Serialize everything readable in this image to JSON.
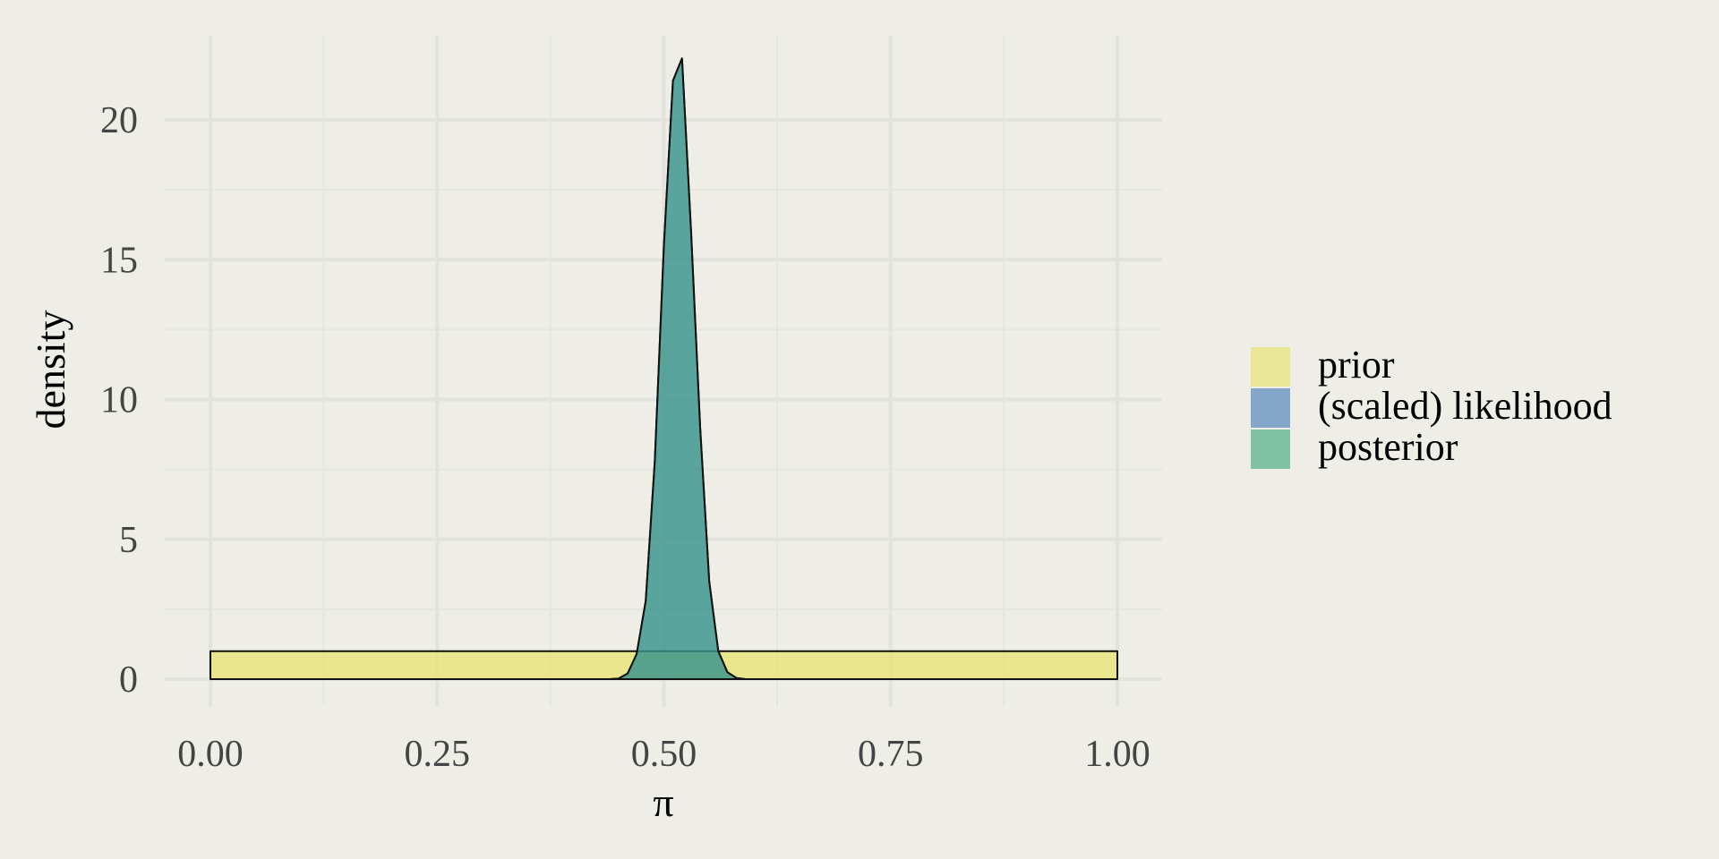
{
  "chart_data": {
    "type": "area",
    "title": "",
    "xlabel": "π",
    "ylabel": "density",
    "xlim": [
      0,
      1
    ],
    "ylim": [
      0,
      22.3
    ],
    "x_ticks": [
      0,
      0.25,
      0.5,
      0.75,
      1.0
    ],
    "x_tick_labels": [
      "0.00",
      "0.25",
      "0.50",
      "0.75",
      "1.00"
    ],
    "y_ticks": [
      0,
      5,
      10,
      15,
      20
    ],
    "y_tick_labels": [
      "0",
      "5",
      "10",
      "15",
      "20"
    ],
    "grid": true,
    "legend_position": "right",
    "series": [
      {
        "name": "prior",
        "color": "#e6e25e",
        "x": [
          0,
          1
        ],
        "y": [
          1,
          1
        ]
      },
      {
        "name": "(scaled) likelihood",
        "color": "#3e77b5",
        "x": [
          0.44,
          0.45,
          0.46,
          0.47,
          0.48,
          0.49,
          0.5,
          0.51,
          0.52,
          0.53,
          0.54,
          0.55,
          0.56,
          0.57,
          0.58,
          0.59,
          0.6
        ],
        "y": [
          0,
          0.02,
          0.2,
          0.9,
          2.8,
          7.8,
          15.5,
          21.4,
          22.2,
          16.0,
          9.0,
          3.5,
          1.0,
          0.25,
          0.04,
          0,
          0
        ]
      },
      {
        "name": "posterior",
        "color": "#36a379",
        "x": [
          0.44,
          0.45,
          0.46,
          0.47,
          0.48,
          0.49,
          0.5,
          0.51,
          0.52,
          0.53,
          0.54,
          0.55,
          0.56,
          0.57,
          0.58,
          0.59,
          0.6
        ],
        "y": [
          0,
          0.02,
          0.2,
          0.9,
          2.8,
          7.8,
          15.5,
          21.4,
          22.2,
          16.0,
          9.0,
          3.5,
          1.0,
          0.25,
          0.04,
          0,
          0
        ]
      }
    ]
  }
}
